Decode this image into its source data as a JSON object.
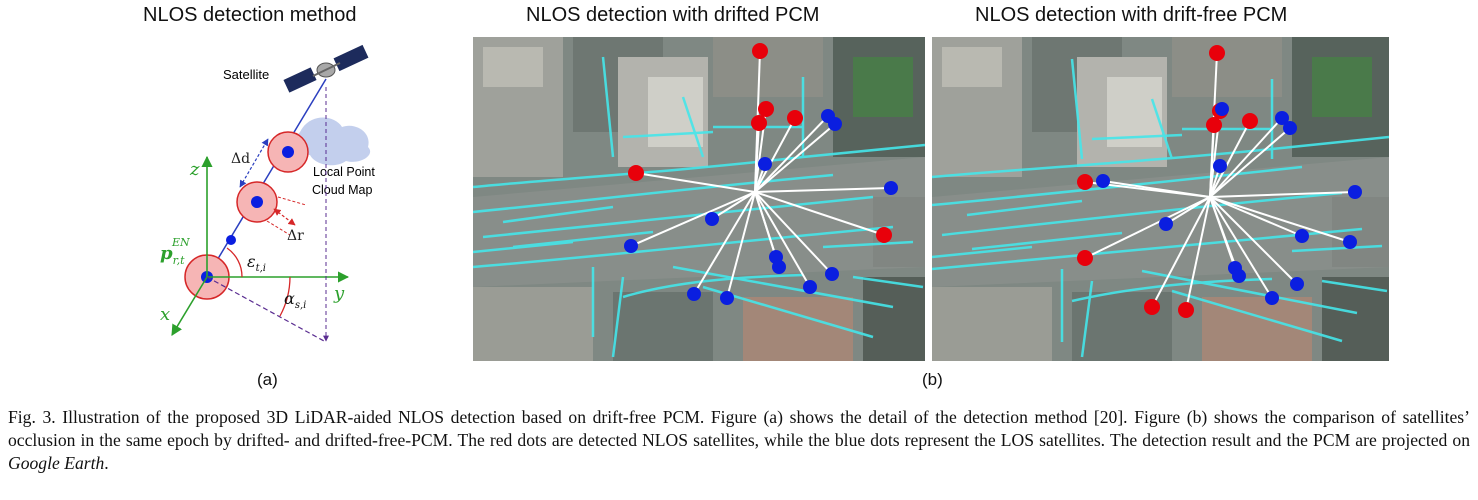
{
  "figure": {
    "panel_a": {
      "heading": "NLOS detection method",
      "sublabel": "(a)",
      "labels": {
        "satellite": "Satellite",
        "local_map_line1": "Local Point",
        "local_map_line2": "Cloud Map",
        "delta_d": "Δd",
        "delta_r": "Δr",
        "axis_z": "z",
        "axis_y": "y",
        "axis_x": "x",
        "p_base": "p",
        "p_sub": "r,t",
        "p_sup": "EN",
        "eps_base": "ε",
        "eps_sub": "t,i",
        "alpha_base": "α",
        "alpha_sub": "s,i"
      }
    },
    "panel_b": {
      "sublabel": "(b)",
      "left_heading": "NLOS detection with drifted PCM",
      "right_heading": "NLOS detection with drift-free PCM"
    },
    "colors": {
      "nlos_dot": "#e8000b",
      "los_dot": "#0a1ee0",
      "point_cloud": "#45e6ea",
      "axis_green": "#2ca02c"
    }
  },
  "caption": {
    "part1": "Fig. 3. Illustration of the proposed 3D LiDAR-aided NLOS detection based on drift-free PCM. Figure (a) shows the detail of the detection method [20]. Figure (b) shows the comparison of satellites’ occlusion in the same epoch by drifted- and drifted-free-PCM. The red dots are detected NLOS satellites, while the blue dots represent the LOS satellites. The detection result and the PCM are projected on ",
    "italic": "Google Earth",
    "part2": "."
  }
}
